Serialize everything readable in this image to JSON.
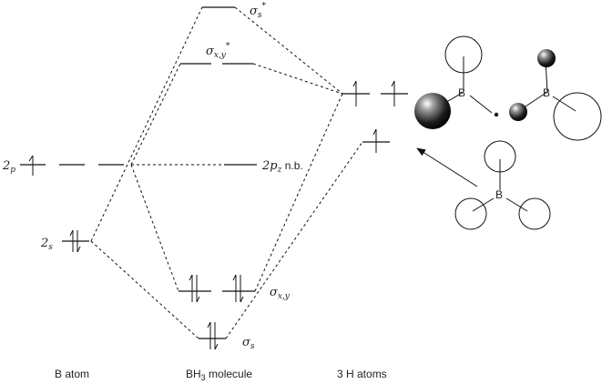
{
  "columns": {
    "boron": "B atom",
    "molecule": "BH3 molecule",
    "hydrogens": "3 H atoms"
  },
  "levels": {
    "b_2p": {
      "symbol": "2",
      "sub": "p"
    },
    "b_2s": {
      "symbol": "2",
      "sub": "s"
    },
    "sigma_s_star": {
      "symbol": "σ",
      "sub": "s",
      "sup": "*"
    },
    "sigma_xy_star": {
      "symbol": "σ",
      "sub": "x,y",
      "sup": "*"
    },
    "two_pz_nb": {
      "symbol": "2",
      "sub": "z",
      "prefix_sub": "p",
      "suffix": " n.b."
    },
    "sigma_xy": {
      "symbol": "σ",
      "sub": "x,y"
    },
    "sigma_s": {
      "symbol": "σ",
      "sub": "s"
    }
  },
  "structure_labels": {
    "boron_atom": "B"
  },
  "colors": {
    "ink": "#111111",
    "background": "#ffffff"
  }
}
